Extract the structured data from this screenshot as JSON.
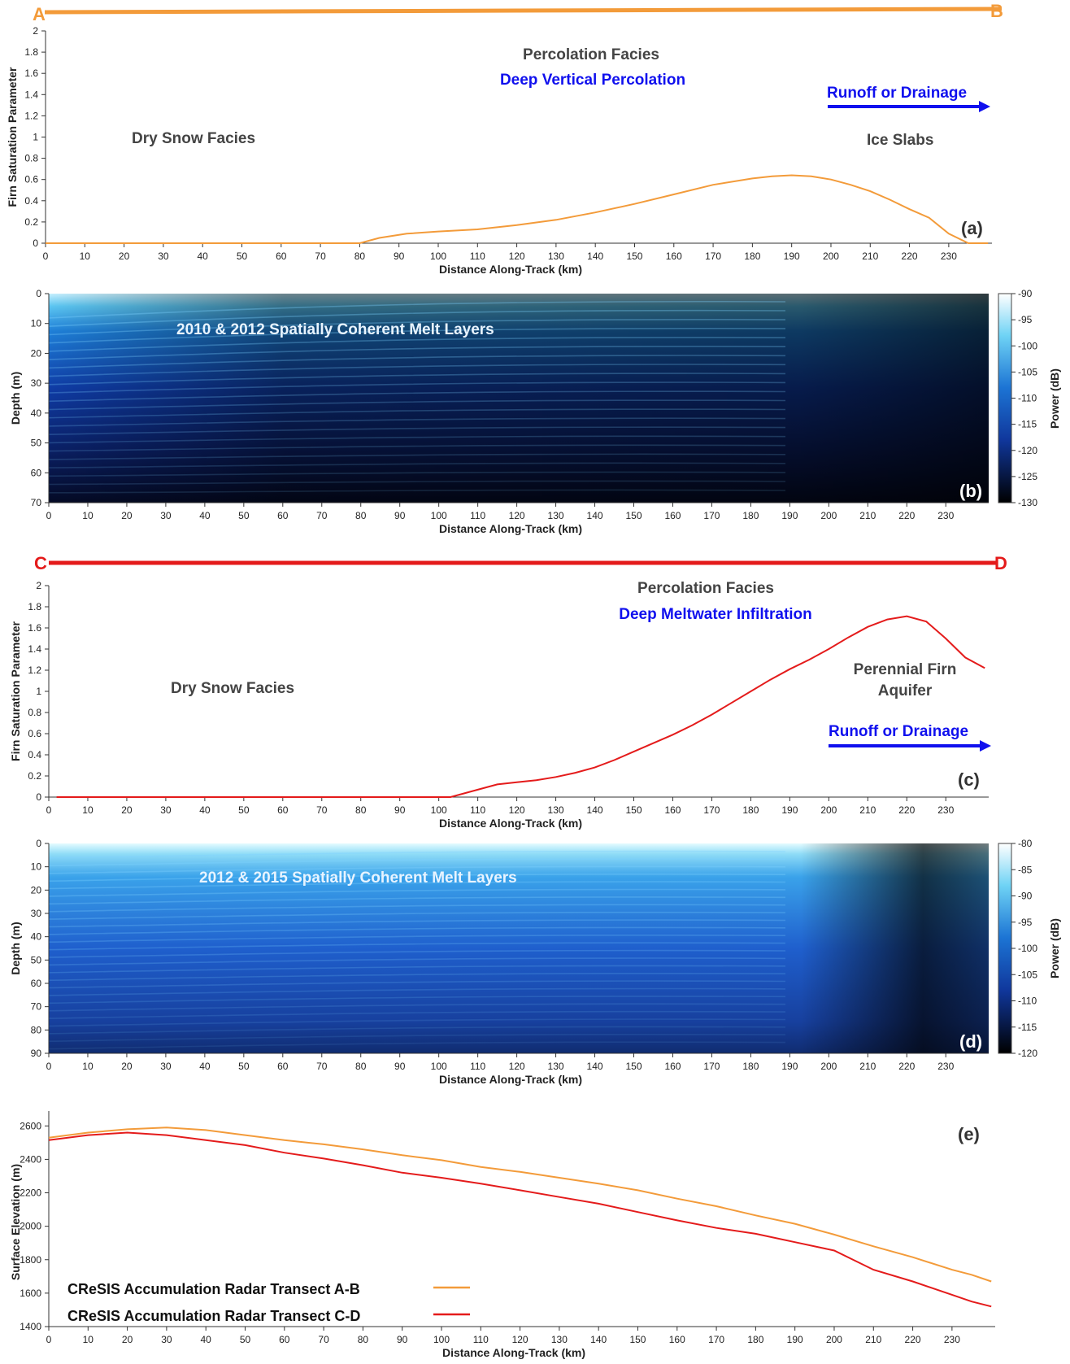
{
  "chart_data": [
    {
      "id": "a",
      "type": "line",
      "panel_label": "(a)",
      "transect": {
        "start": "A",
        "end": "B",
        "color": "#f39b3a"
      },
      "xlabel": "Distance Along-Track (km)",
      "ylabel": "Firn Saturation Parameter",
      "xlim": [
        0,
        241
      ],
      "ylim": [
        0,
        2
      ],
      "xticks": [
        0,
        10,
        20,
        30,
        40,
        50,
        60,
        70,
        80,
        90,
        100,
        110,
        120,
        130,
        140,
        150,
        160,
        170,
        180,
        190,
        200,
        210,
        220,
        230
      ],
      "yticks": [
        0,
        0.2,
        0.4,
        0.6,
        0.8,
        1,
        1.2,
        1.4,
        1.6,
        1.8,
        2
      ],
      "series": [
        {
          "color": "#f39b3a",
          "x": [
            0,
            80,
            85,
            92,
            100,
            110,
            120,
            130,
            140,
            150,
            160,
            170,
            180,
            185,
            190,
            195,
            200,
            205,
            210,
            215,
            220,
            225,
            230,
            235,
            240
          ],
          "y": [
            0,
            0,
            0.05,
            0.09,
            0.11,
            0.13,
            0.17,
            0.22,
            0.29,
            0.37,
            0.46,
            0.55,
            0.61,
            0.63,
            0.64,
            0.63,
            0.6,
            0.55,
            0.49,
            0.41,
            0.32,
            0.24,
            0.09,
            0,
            0
          ]
        }
      ],
      "annotations": {
        "percolation": "Percolation Facies",
        "deep_vertical": "Deep Vertical Percolation",
        "runoff": "Runoff or Drainage",
        "dry_snow": "Dry Snow Facies",
        "ice_slabs": "Ice Slabs"
      }
    },
    {
      "id": "b",
      "type": "heatmap",
      "panel_label": "(b)",
      "xlabel": "Distance Along-Track (km)",
      "ylabel": "Depth (m)",
      "xlim": [
        0,
        241
      ],
      "ylim": [
        0,
        70
      ],
      "xticks": [
        0,
        10,
        20,
        30,
        40,
        50,
        60,
        70,
        80,
        90,
        100,
        110,
        120,
        130,
        140,
        150,
        160,
        170,
        180,
        190,
        200,
        210,
        220,
        230
      ],
      "yticks": [
        0,
        10,
        20,
        30,
        40,
        50,
        60,
        70
      ],
      "colorbar": {
        "label": "Power (dB)",
        "ticks": [
          -90,
          -95,
          -100,
          -105,
          -110,
          -115,
          -120,
          -125,
          -130
        ]
      },
      "annotation": "2010 & 2012 Spatially Coherent Melt Layers"
    },
    {
      "id": "c",
      "type": "line",
      "panel_label": "(c)",
      "transect": {
        "start": "C",
        "end": "D",
        "color": "#e41b1b"
      },
      "xlabel": "Distance Along-Track (km)",
      "ylabel": "Firn Saturation Parameter",
      "xlim": [
        0,
        241
      ],
      "ylim": [
        0,
        2
      ],
      "xticks": [
        0,
        10,
        20,
        30,
        40,
        50,
        60,
        70,
        80,
        90,
        100,
        110,
        120,
        130,
        140,
        150,
        160,
        170,
        180,
        190,
        200,
        210,
        220,
        230
      ],
      "yticks": [
        0,
        0.2,
        0.4,
        0.6,
        0.8,
        1,
        1.2,
        1.4,
        1.6,
        1.8,
        2
      ],
      "series": [
        {
          "color": "#e41b1b",
          "x": [
            2,
            103,
            110,
            115,
            120,
            125,
            130,
            135,
            140,
            145,
            150,
            155,
            160,
            165,
            170,
            175,
            180,
            185,
            190,
            195,
            200,
            205,
            210,
            215,
            220,
            225,
            230,
            235,
            240
          ],
          "y": [
            0,
            0,
            0.07,
            0.12,
            0.14,
            0.16,
            0.19,
            0.23,
            0.28,
            0.35,
            0.43,
            0.51,
            0.59,
            0.68,
            0.78,
            0.89,
            1.0,
            1.11,
            1.21,
            1.3,
            1.4,
            1.51,
            1.61,
            1.68,
            1.71,
            1.66,
            1.5,
            1.32,
            1.22
          ]
        }
      ],
      "annotations": {
        "percolation": "Percolation Facies",
        "deep_meltwater": "Deep Meltwater Infiltration",
        "runoff": "Runoff or Drainage",
        "dry_snow": "Dry Snow Facies",
        "aquifer_line1": "Perennial Firn",
        "aquifer_line2": "Aquifer"
      }
    },
    {
      "id": "d",
      "type": "heatmap",
      "panel_label": "(d)",
      "xlabel": "Distance Along-Track (km)",
      "ylabel": "Depth (m)",
      "xlim": [
        0,
        241
      ],
      "ylim": [
        0,
        90
      ],
      "xticks": [
        0,
        10,
        20,
        30,
        40,
        50,
        60,
        70,
        80,
        90,
        100,
        110,
        120,
        130,
        140,
        150,
        160,
        170,
        180,
        190,
        200,
        210,
        220,
        230
      ],
      "yticks": [
        0,
        10,
        20,
        30,
        40,
        50,
        60,
        70,
        80,
        90
      ],
      "colorbar": {
        "label": "Power (dB)",
        "ticks": [
          -80,
          -85,
          -90,
          -95,
          -100,
          -105,
          -110,
          -115,
          -120
        ]
      },
      "annotation": "2012 & 2015 Spatially Coherent Melt Layers"
    },
    {
      "id": "e",
      "type": "line",
      "panel_label": "(e)",
      "xlabel": "Distance Along-Track (km)",
      "ylabel": "Surface Elevation (m)",
      "xlim": [
        0,
        241
      ],
      "ylim": [
        1400,
        2650
      ],
      "xticks": [
        0,
        10,
        20,
        30,
        40,
        50,
        60,
        70,
        80,
        90,
        100,
        110,
        120,
        130,
        140,
        150,
        160,
        170,
        180,
        190,
        200,
        210,
        220,
        230
      ],
      "yticks": [
        1400,
        1600,
        1800,
        2000,
        2200,
        2400,
        2600
      ],
      "series": [
        {
          "name": "CReSIS Accumulation Radar Transect A-B",
          "color": "#f39b3a",
          "x": [
            0,
            10,
            20,
            30,
            40,
            50,
            60,
            70,
            80,
            90,
            100,
            110,
            120,
            130,
            140,
            150,
            160,
            170,
            180,
            190,
            200,
            210,
            220,
            230,
            235,
            240
          ],
          "y": [
            2530,
            2560,
            2580,
            2590,
            2575,
            2545,
            2515,
            2490,
            2460,
            2425,
            2395,
            2355,
            2325,
            2290,
            2255,
            2215,
            2165,
            2120,
            2065,
            2015,
            1950,
            1880,
            1815,
            1740,
            1710,
            1670
          ]
        },
        {
          "name": "CReSIS Accumulation Radar Transect C-D",
          "color": "#e41b1b",
          "x": [
            0,
            10,
            20,
            30,
            40,
            50,
            60,
            70,
            80,
            90,
            100,
            110,
            120,
            130,
            140,
            150,
            160,
            170,
            180,
            190,
            200,
            210,
            220,
            230,
            235,
            240
          ],
          "y": [
            2515,
            2545,
            2560,
            2545,
            2515,
            2485,
            2440,
            2405,
            2365,
            2320,
            2290,
            2255,
            2215,
            2175,
            2135,
            2085,
            2035,
            1990,
            1955,
            1905,
            1855,
            1740,
            1670,
            1590,
            1550,
            1520
          ]
        }
      ]
    }
  ]
}
